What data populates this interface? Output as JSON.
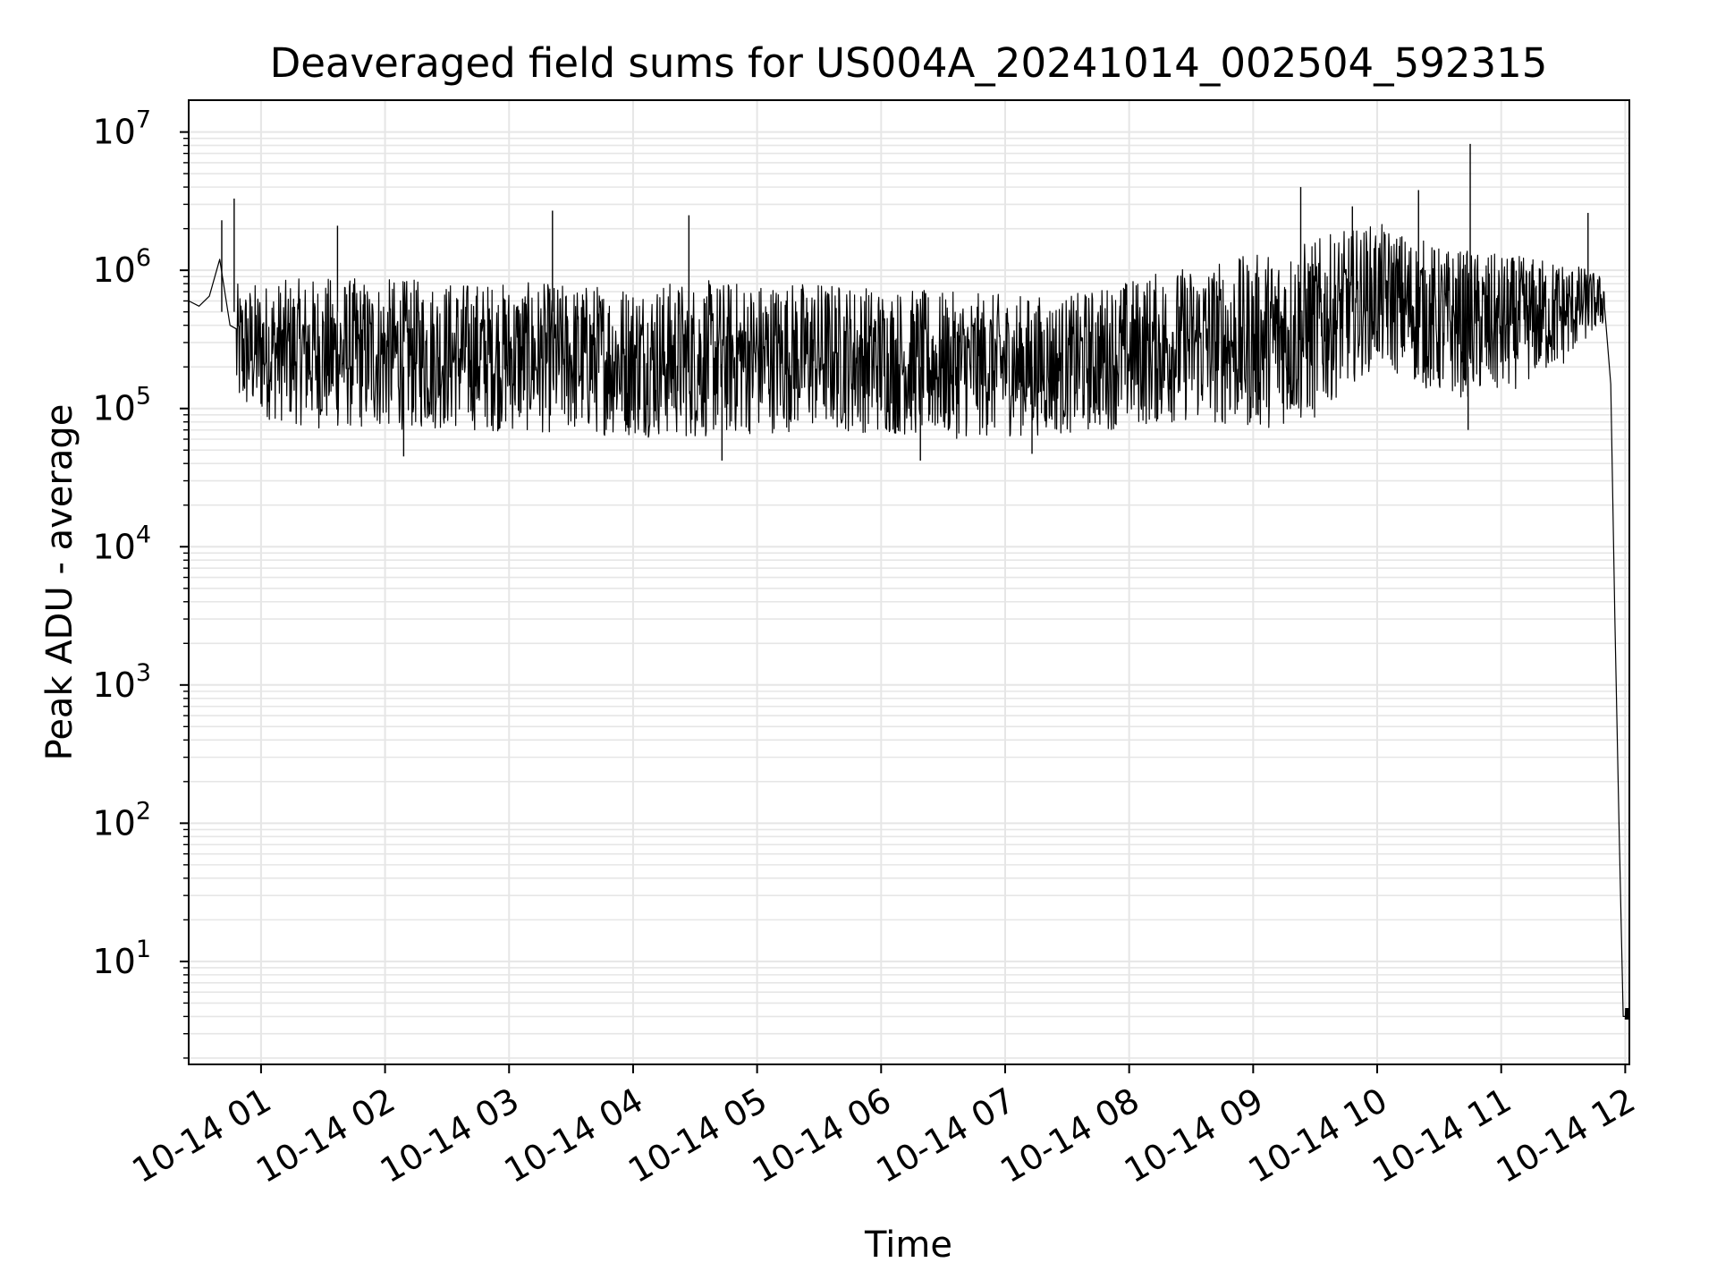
{
  "chart_data": {
    "type": "line",
    "title": "Deaveraged field sums for US004A_20241014_002504_592315",
    "xlabel": "Time",
    "ylabel": "Peak ADU - average",
    "yscale": "log",
    "grid": true,
    "ylim": [
      1.8,
      17000000
    ],
    "xlim": [
      "2024-10-14 00:25",
      "2024-10-14 12:02"
    ],
    "x_ticks": [
      "10-14 01",
      "10-14 02",
      "10-14 03",
      "10-14 04",
      "10-14 05",
      "10-14 06",
      "10-14 07",
      "10-14 08",
      "10-14 09",
      "10-14 10",
      "10-14 11",
      "10-14 12"
    ],
    "y_ticks": [
      {
        "base": "10",
        "exp": "1"
      },
      {
        "base": "10",
        "exp": "2"
      },
      {
        "base": "10",
        "exp": "3"
      },
      {
        "base": "10",
        "exp": "4"
      },
      {
        "base": "10",
        "exp": "5"
      },
      {
        "base": "10",
        "exp": "6"
      },
      {
        "base": "10",
        "exp": "7"
      }
    ],
    "series": [
      {
        "color": "#000000",
        "x": [
          "2024-10-14 00:25",
          "2024-10-14 00:30",
          "2024-10-14 00:35",
          "2024-10-14 00:40",
          "2024-10-14 00:45",
          "2024-10-14 00:50",
          "2024-10-14 01:00",
          "2024-10-14 01:15",
          "2024-10-14 01:30",
          "2024-10-14 02:00",
          "2024-10-14 02:30",
          "2024-10-14 03:00",
          "2024-10-14 03:30",
          "2024-10-14 04:00",
          "2024-10-14 04:30",
          "2024-10-14 05:00",
          "2024-10-14 05:30",
          "2024-10-14 06:00",
          "2024-10-14 06:30",
          "2024-10-14 07:00",
          "2024-10-14 07:30",
          "2024-10-14 08:00",
          "2024-10-14 08:30",
          "2024-10-14 09:00",
          "2024-10-14 09:30",
          "2024-10-14 10:00",
          "2024-10-14 10:30",
          "2024-10-14 11:00",
          "2024-10-14 11:30",
          "2024-10-14 11:50",
          "2024-10-14 11:53",
          "2024-10-14 11:55",
          "2024-10-14 11:57",
          "2024-10-14 11:59",
          "2024-10-14 12:00",
          "2024-10-14 12:02"
        ],
        "y": [
          600000,
          550000,
          650000,
          1200000,
          400000,
          300000,
          250000,
          300000,
          280000,
          300000,
          250000,
          220000,
          210000,
          230000,
          200000,
          250000,
          230000,
          180000,
          150000,
          120000,
          130000,
          200000,
          250000,
          300000,
          400000,
          900000,
          700000,
          500000,
          600000,
          700000,
          150000,
          3000,
          100,
          4,
          4,
          4
        ],
        "envelope": {
          "x": [
            "2024-10-14 00:48",
            "2024-10-14 01:30",
            "2024-10-14 02:30",
            "2024-10-14 03:30",
            "2024-10-14 04:30",
            "2024-10-14 05:30",
            "2024-10-14 06:30",
            "2024-10-14 07:30",
            "2024-10-14 08:30",
            "2024-10-14 09:00",
            "2024-10-14 09:30",
            "2024-10-14 10:00",
            "2024-10-14 10:30",
            "2024-10-14 11:00",
            "2024-10-14 11:30",
            "2024-10-14 11:50"
          ],
          "low": [
            90000,
            70000,
            70000,
            65000,
            60000,
            70000,
            60000,
            65000,
            80000,
            70000,
            80000,
            200000,
            120000,
            120000,
            200000,
            400000
          ],
          "high": [
            800000,
            900000,
            850000,
            800000,
            850000,
            850000,
            700000,
            650000,
            1100000,
            1300000,
            1700000,
            2200000,
            1500000,
            1300000,
            1200000,
            900000
          ]
        }
      }
    ],
    "spikes": [
      {
        "x": "2024-10-14 00:41",
        "y": 2300000
      },
      {
        "x": "2024-10-14 00:47",
        "y": 3300000
      },
      {
        "x": "2024-10-14 01:37",
        "y": 2100000
      },
      {
        "x": "2024-10-14 03:21",
        "y": 2700000
      },
      {
        "x": "2024-10-14 04:27",
        "y": 2500000
      },
      {
        "x": "2024-10-14 09:23",
        "y": 4000000
      },
      {
        "x": "2024-10-14 09:48",
        "y": 2900000
      },
      {
        "x": "2024-10-14 10:20",
        "y": 3800000
      },
      {
        "x": "2024-10-14 10:45",
        "y": 8200000
      },
      {
        "x": "2024-10-14 11:42",
        "y": 2600000
      }
    ],
    "dips": [
      {
        "x": "2024-10-14 02:09",
        "y": 45000
      },
      {
        "x": "2024-10-14 04:43",
        "y": 42000
      },
      {
        "x": "2024-10-14 06:19",
        "y": 42000
      },
      {
        "x": "2024-10-14 07:13",
        "y": 47000
      },
      {
        "x": "2024-10-14 10:44",
        "y": 70000
      }
    ]
  }
}
